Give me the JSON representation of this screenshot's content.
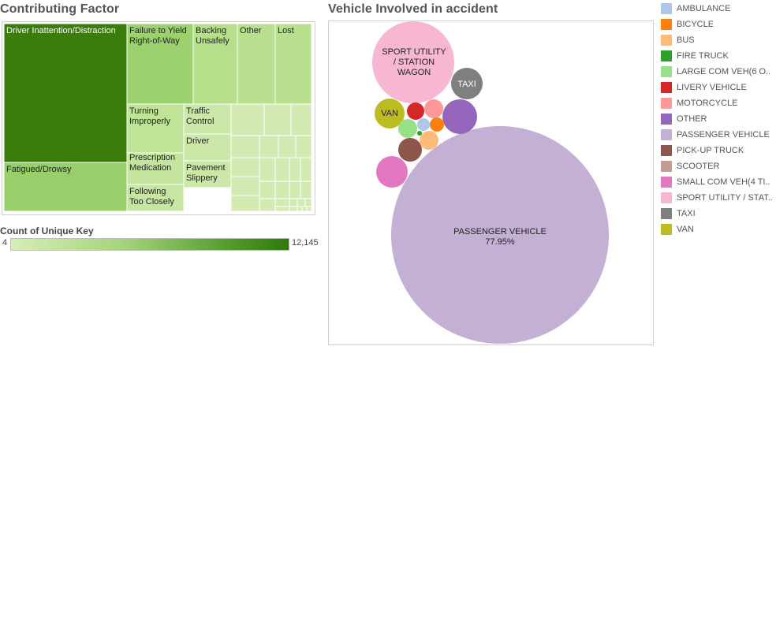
{
  "treemap": {
    "title": "Contributing Factor",
    "cells": [
      {
        "label": "Driver Inattention/Distraction",
        "color": "#3b7d0a",
        "text_color": "#ffffff"
      },
      {
        "label": "Fatigued/Drowsy",
        "color": "#98cf6b",
        "text_color": "#222222"
      },
      {
        "label": "Failure to Yield Right-of-Way",
        "color": "#9dd16f",
        "text_color": "#222222"
      },
      {
        "label": "Backing Unsafely",
        "color": "#b6df8c",
        "text_color": "#222222"
      },
      {
        "label": "Other",
        "color": "#b9e08f",
        "text_color": "#222222"
      },
      {
        "label": "Lost",
        "color": "#b9e08f",
        "text_color": "#222222"
      },
      {
        "label": "Turning Improperly",
        "color": "#bfe397",
        "text_color": "#222222"
      },
      {
        "label": "Traffic Control",
        "color": "#cbe8a8",
        "text_color": "#222222"
      },
      {
        "label": "Driver",
        "color": "#cbe8a8",
        "text_color": "#222222"
      },
      {
        "label": "Prescription Medication",
        "color": "#c4e59e",
        "text_color": "#222222"
      },
      {
        "label": "Pavement Slippery",
        "color": "#cbe8a8",
        "text_color": "#222222"
      },
      {
        "label": "Following Too Closely",
        "color": "#c7e6a3",
        "text_color": "#222222"
      }
    ],
    "small_cell_color": "#d3ebb3"
  },
  "color_legend": {
    "title": "Count of Unique Key",
    "min": "4",
    "max": "12,145"
  },
  "bubble": {
    "title": "Vehicle Involved in accident"
  },
  "legend_items": [
    {
      "label": "AMBULANCE",
      "color": "#aec7e8"
    },
    {
      "label": "BICYCLE",
      "color": "#ff7f0e"
    },
    {
      "label": "BUS",
      "color": "#ffbb78"
    },
    {
      "label": "FIRE TRUCK",
      "color": "#2ca02c"
    },
    {
      "label": "LARGE COM VEH(6 O..",
      "color": "#98df8a"
    },
    {
      "label": "LIVERY VEHICLE",
      "color": "#d62728"
    },
    {
      "label": "MOTORCYCLE",
      "color": "#ff9896"
    },
    {
      "label": "OTHER",
      "color": "#9467bd"
    },
    {
      "label": "PASSENGER VEHICLE",
      "color": "#c5b0d5"
    },
    {
      "label": "PICK-UP TRUCK",
      "color": "#8c564b"
    },
    {
      "label": "SCOOTER",
      "color": "#c49c94"
    },
    {
      "label": "SMALL COM VEH(4 TI..",
      "color": "#e377c2"
    },
    {
      "label": "SPORT UTILITY / STAT..",
      "color": "#f7b6d2"
    },
    {
      "label": "TAXI",
      "color": "#7f7f7f"
    },
    {
      "label": "VAN",
      "color": "#bcbd22"
    }
  ],
  "chart_data": [
    {
      "type": "treemap",
      "title": "Contributing Factor",
      "measure": "Count of Unique Key",
      "range": [
        4,
        12145
      ],
      "categories": [
        "Driver Inattention/Distraction",
        "Fatigued/Drowsy",
        "Failure to Yield Right-of-Way",
        "Backing Unsafely",
        "Other",
        "Lost",
        "Turning Improperly",
        "Traffic Control",
        "Driver",
        "Prescription Medication",
        "Pavement Slippery",
        "Following Too Closely"
      ]
    },
    {
      "type": "bubble",
      "title": "Vehicle Involved in accident",
      "bubbles": [
        {
          "name": "PASSENGER VEHICLE",
          "label": "PASSENGER VEHICLE",
          "pct_label": "77.95%",
          "share": 77.95,
          "color": "#c5b0d5",
          "text_color": "#222222"
        },
        {
          "name": "SPORT UTILITY / STAT..",
          "label": "SPORT UTILITY / STATION WAGON",
          "share": 11.6,
          "color": "#f7b6d2",
          "text_color": "#222222"
        },
        {
          "name": "TAXI",
          "label": "TAXI",
          "share": 1.5,
          "color": "#7f7f7f",
          "text_color": "#ffffff"
        },
        {
          "name": "VAN",
          "label": "VAN",
          "share": 1.4,
          "color": "#bcbd22",
          "text_color": "#222222"
        },
        {
          "name": "OTHER",
          "label": "",
          "share": 1.8,
          "color": "#9467bd",
          "text_color": "#ffffff"
        },
        {
          "name": "SMALL COM VEH(4 TI..",
          "label": "",
          "share": 1.6,
          "color": "#e377c2",
          "text_color": "#ffffff"
        },
        {
          "name": "PICK-UP TRUCK",
          "label": "",
          "share": 0.9,
          "color": "#8c564b",
          "text_color": "#ffffff"
        },
        {
          "name": "LIVERY VEHICLE",
          "label": "",
          "share": 0.5,
          "color": "#d62728",
          "text_color": "#ffffff"
        },
        {
          "name": "MOTORCYCLE",
          "label": "",
          "share": 0.5,
          "color": "#ff9896",
          "text_color": "#ffffff"
        },
        {
          "name": "BUS",
          "label": "",
          "share": 0.5,
          "color": "#ffbb78",
          "text_color": "#ffffff"
        },
        {
          "name": "LARGE COM VEH(6 O..",
          "label": "",
          "share": 0.5,
          "color": "#98df8a",
          "text_color": "#ffffff"
        },
        {
          "name": "BICYCLE",
          "label": "",
          "share": 0.3,
          "color": "#ff7f0e",
          "text_color": "#ffffff"
        },
        {
          "name": "AMBULANCE",
          "label": "",
          "share": 0.2,
          "color": "#aec7e8",
          "text_color": "#ffffff"
        },
        {
          "name": "FIRE TRUCK",
          "label": "",
          "share": 0.03,
          "color": "#2ca02c",
          "text_color": "#ffffff"
        }
      ]
    }
  ]
}
